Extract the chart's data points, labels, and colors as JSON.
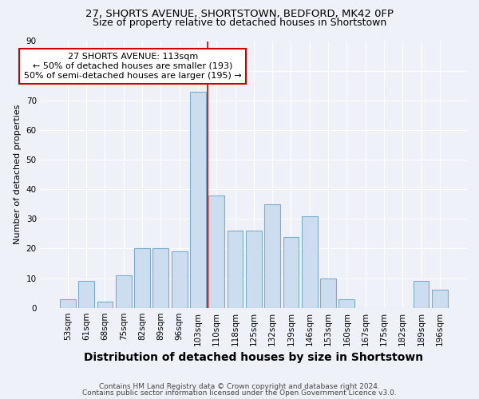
{
  "title1": "27, SHORTS AVENUE, SHORTSTOWN, BEDFORD, MK42 0FP",
  "title2": "Size of property relative to detached houses in Shortstown",
  "xlabel": "Distribution of detached houses by size in Shortstown",
  "ylabel": "Number of detached properties",
  "categories": [
    "53sqm",
    "61sqm",
    "68sqm",
    "75sqm",
    "82sqm",
    "89sqm",
    "96sqm",
    "103sqm",
    "110sqm",
    "118sqm",
    "125sqm",
    "132sqm",
    "139sqm",
    "146sqm",
    "153sqm",
    "160sqm",
    "167sqm",
    "175sqm",
    "182sqm",
    "189sqm",
    "196sqm"
  ],
  "values": [
    3,
    9,
    2,
    11,
    20,
    20,
    19,
    73,
    38,
    26,
    26,
    35,
    24,
    31,
    10,
    3,
    0,
    0,
    0,
    9,
    6
  ],
  "bar_color": "#ccddf0",
  "bar_edge_color": "#7aaccc",
  "vline_x_index": 7.5,
  "vline_color": "#cc0000",
  "annotation_box_text": "27 SHORTS AVENUE: 113sqm\n← 50% of detached houses are smaller (193)\n50% of semi-detached houses are larger (195) →",
  "annotation_box_color": "#ffffff",
  "annotation_box_edge_color": "#cc0000",
  "ylim": [
    0,
    90
  ],
  "yticks": [
    0,
    10,
    20,
    30,
    40,
    50,
    60,
    70,
    80,
    90
  ],
  "footer1": "Contains HM Land Registry data © Crown copyright and database right 2024.",
  "footer2": "Contains public sector information licensed under the Open Government Licence v3.0.",
  "bg_color": "#eef2f8",
  "plot_bg_color": "#eef2f8",
  "title1_fontsize": 9.5,
  "title2_fontsize": 9,
  "xlabel_fontsize": 10,
  "ylabel_fontsize": 8,
  "tick_fontsize": 7.5,
  "annotation_fontsize": 8,
  "footer_fontsize": 6.5
}
